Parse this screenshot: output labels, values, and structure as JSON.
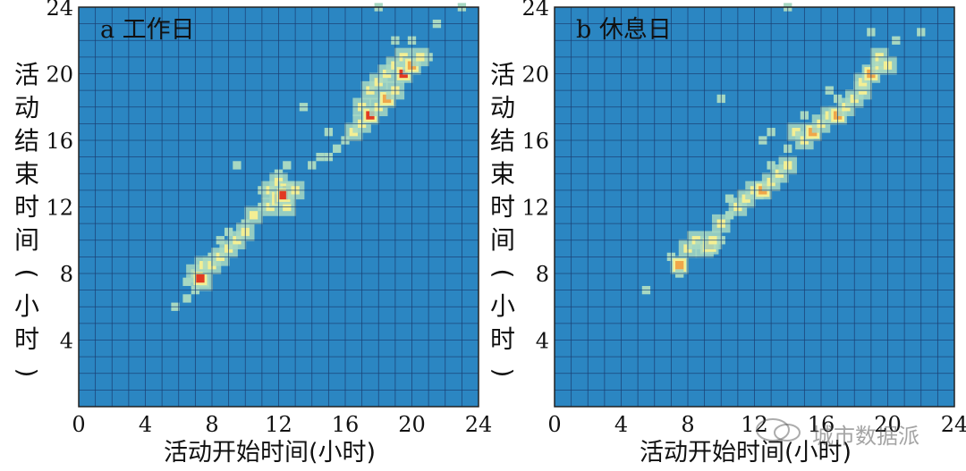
{
  "colors": {
    "background": "#2b86c2",
    "grid": "#1b3f73",
    "density_low": "#a7d8c2",
    "density_mid": "#f3ef94",
    "density_high": "#f0a64a",
    "density_peak": "#e23a22"
  },
  "watermark": {
    "text": "城市数据派"
  },
  "chart_data": [
    {
      "type": "heatmap",
      "title": "a 工作日",
      "xlabel": "活动开始时间(小时)",
      "ylabel": "活动结束时间(小时)",
      "xlim": [
        0,
        24
      ],
      "ylim": [
        0,
        24
      ],
      "xticks": [
        "0",
        "4",
        "8",
        "12",
        "16",
        "20",
        "24"
      ],
      "yticks": [
        "4",
        "8",
        "12",
        "16",
        "20",
        "24"
      ],
      "grid": true,
      "cell_size_hours": 0.5,
      "points": [
        {
          "x": 5.8,
          "y": 6.0,
          "v": 1
        },
        {
          "x": 6.5,
          "y": 6.5,
          "v": 1
        },
        {
          "x": 7.0,
          "y": 7.0,
          "v": 1
        },
        {
          "x": 6.5,
          "y": 7.5,
          "v": 1
        },
        {
          "x": 7.0,
          "y": 8.0,
          "v": 2
        },
        {
          "x": 7.5,
          "y": 7.5,
          "v": 2
        },
        {
          "x": 7.5,
          "y": 8.5,
          "v": 2
        },
        {
          "x": 7.3,
          "y": 7.7,
          "v": 4
        },
        {
          "x": 8.0,
          "y": 8.5,
          "v": 2
        },
        {
          "x": 8.0,
          "y": 9.0,
          "v": 1
        },
        {
          "x": 8.5,
          "y": 9.0,
          "v": 2
        },
        {
          "x": 9.0,
          "y": 9.5,
          "v": 2
        },
        {
          "x": 8.5,
          "y": 10.0,
          "v": 1
        },
        {
          "x": 9.5,
          "y": 10.0,
          "v": 2
        },
        {
          "x": 9.0,
          "y": 10.5,
          "v": 1
        },
        {
          "x": 10.0,
          "y": 10.5,
          "v": 2
        },
        {
          "x": 10.0,
          "y": 11.0,
          "v": 1
        },
        {
          "x": 10.5,
          "y": 11.5,
          "v": 2
        },
        {
          "x": 11.0,
          "y": 12.0,
          "v": 1
        },
        {
          "x": 11.5,
          "y": 12.0,
          "v": 2
        },
        {
          "x": 11.0,
          "y": 13.0,
          "v": 1
        },
        {
          "x": 11.5,
          "y": 13.0,
          "v": 2
        },
        {
          "x": 12.0,
          "y": 12.5,
          "v": 3
        },
        {
          "x": 12.0,
          "y": 13.5,
          "v": 2
        },
        {
          "x": 12.5,
          "y": 12.0,
          "v": 2
        },
        {
          "x": 12.5,
          "y": 13.0,
          "v": 3
        },
        {
          "x": 12.3,
          "y": 12.7,
          "v": 4
        },
        {
          "x": 12.0,
          "y": 14.0,
          "v": 1
        },
        {
          "x": 13.0,
          "y": 13.0,
          "v": 2
        },
        {
          "x": 12.5,
          "y": 14.5,
          "v": 1
        },
        {
          "x": 9.5,
          "y": 14.5,
          "v": 1
        },
        {
          "x": 14.0,
          "y": 14.5,
          "v": 1
        },
        {
          "x": 14.5,
          "y": 15.0,
          "v": 1
        },
        {
          "x": 15.0,
          "y": 15.0,
          "v": 1
        },
        {
          "x": 15.5,
          "y": 15.5,
          "v": 1
        },
        {
          "x": 16.0,
          "y": 16.0,
          "v": 1
        },
        {
          "x": 15.0,
          "y": 16.5,
          "v": 1
        },
        {
          "x": 16.5,
          "y": 16.5,
          "v": 2
        },
        {
          "x": 17.0,
          "y": 17.0,
          "v": 2
        },
        {
          "x": 17.0,
          "y": 18.0,
          "v": 2
        },
        {
          "x": 17.5,
          "y": 17.5,
          "v": 4
        },
        {
          "x": 18.0,
          "y": 18.0,
          "v": 2
        },
        {
          "x": 17.5,
          "y": 19.0,
          "v": 2
        },
        {
          "x": 18.5,
          "y": 18.5,
          "v": 3
        },
        {
          "x": 18.0,
          "y": 19.5,
          "v": 2
        },
        {
          "x": 19.0,
          "y": 19.0,
          "v": 2
        },
        {
          "x": 18.5,
          "y": 20.0,
          "v": 2
        },
        {
          "x": 19.0,
          "y": 20.5,
          "v": 2
        },
        {
          "x": 19.5,
          "y": 20.0,
          "v": 4
        },
        {
          "x": 19.5,
          "y": 21.0,
          "v": 2
        },
        {
          "x": 20.0,
          "y": 20.5,
          "v": 3
        },
        {
          "x": 20.5,
          "y": 21.0,
          "v": 2
        },
        {
          "x": 19.0,
          "y": 22.0,
          "v": 1
        },
        {
          "x": 20.0,
          "y": 22.0,
          "v": 1
        },
        {
          "x": 21.0,
          "y": 21.0,
          "v": 1
        },
        {
          "x": 13.5,
          "y": 18.0,
          "v": 1
        },
        {
          "x": 21.5,
          "y": 23.0,
          "v": 1
        },
        {
          "x": 23.0,
          "y": 24.0,
          "v": 1
        },
        {
          "x": 18.0,
          "y": 24.0,
          "v": 1
        }
      ]
    },
    {
      "type": "heatmap",
      "title": "b 休息日",
      "xlabel": "活动开始时间(小时)",
      "ylabel": "活动结束时间(小时)",
      "xlim": [
        0,
        24
      ],
      "ylim": [
        0,
        24
      ],
      "xticks": [
        "0",
        "4",
        "8",
        "12",
        "16",
        "20",
        "24"
      ],
      "yticks": [
        "4",
        "8",
        "12",
        "16",
        "20",
        "24"
      ],
      "grid": true,
      "cell_size_hours": 0.5,
      "points": [
        {
          "x": 5.5,
          "y": 7.0,
          "v": 1
        },
        {
          "x": 7.0,
          "y": 9.0,
          "v": 1
        },
        {
          "x": 7.5,
          "y": 8.5,
          "v": 3
        },
        {
          "x": 7.5,
          "y": 8.0,
          "v": 1
        },
        {
          "x": 8.0,
          "y": 9.5,
          "v": 2
        },
        {
          "x": 8.5,
          "y": 10.0,
          "v": 2
        },
        {
          "x": 9.0,
          "y": 9.5,
          "v": 2
        },
        {
          "x": 9.3,
          "y": 9.7,
          "v": 3
        },
        {
          "x": 9.5,
          "y": 10.0,
          "v": 2
        },
        {
          "x": 10.0,
          "y": 11.0,
          "v": 2
        },
        {
          "x": 10.0,
          "y": 10.0,
          "v": 1
        },
        {
          "x": 10.5,
          "y": 11.5,
          "v": 1
        },
        {
          "x": 11.0,
          "y": 12.0,
          "v": 2
        },
        {
          "x": 10.5,
          "y": 12.5,
          "v": 1
        },
        {
          "x": 11.5,
          "y": 12.5,
          "v": 2
        },
        {
          "x": 12.0,
          "y": 13.0,
          "v": 2
        },
        {
          "x": 12.5,
          "y": 13.0,
          "v": 3
        },
        {
          "x": 13.0,
          "y": 13.5,
          "v": 2
        },
        {
          "x": 13.0,
          "y": 14.5,
          "v": 1
        },
        {
          "x": 13.5,
          "y": 14.0,
          "v": 2
        },
        {
          "x": 14.0,
          "y": 14.5,
          "v": 2
        },
        {
          "x": 14.0,
          "y": 15.5,
          "v": 1
        },
        {
          "x": 13.0,
          "y": 16.5,
          "v": 1
        },
        {
          "x": 14.5,
          "y": 16.5,
          "v": 2
        },
        {
          "x": 15.0,
          "y": 16.0,
          "v": 2
        },
        {
          "x": 15.0,
          "y": 17.5,
          "v": 1
        },
        {
          "x": 15.5,
          "y": 16.5,
          "v": 3
        },
        {
          "x": 16.0,
          "y": 17.0,
          "v": 2
        },
        {
          "x": 16.5,
          "y": 17.5,
          "v": 2
        },
        {
          "x": 17.0,
          "y": 17.5,
          "v": 3
        },
        {
          "x": 17.5,
          "y": 18.0,
          "v": 2
        },
        {
          "x": 17.0,
          "y": 18.5,
          "v": 1
        },
        {
          "x": 18.0,
          "y": 18.5,
          "v": 2
        },
        {
          "x": 18.5,
          "y": 19.0,
          "v": 2
        },
        {
          "x": 18.5,
          "y": 19.5,
          "v": 2
        },
        {
          "x": 19.0,
          "y": 20.0,
          "v": 3
        },
        {
          "x": 19.5,
          "y": 20.5,
          "v": 2
        },
        {
          "x": 19.5,
          "y": 21.0,
          "v": 2
        },
        {
          "x": 20.0,
          "y": 20.5,
          "v": 2
        },
        {
          "x": 16.5,
          "y": 19.0,
          "v": 1
        },
        {
          "x": 10.0,
          "y": 18.5,
          "v": 1
        },
        {
          "x": 12.5,
          "y": 16.0,
          "v": 1
        },
        {
          "x": 20.5,
          "y": 22.0,
          "v": 1
        },
        {
          "x": 22.0,
          "y": 22.5,
          "v": 1
        },
        {
          "x": 19.0,
          "y": 22.5,
          "v": 1
        },
        {
          "x": 14.0,
          "y": 24.0,
          "v": 1
        }
      ]
    }
  ]
}
